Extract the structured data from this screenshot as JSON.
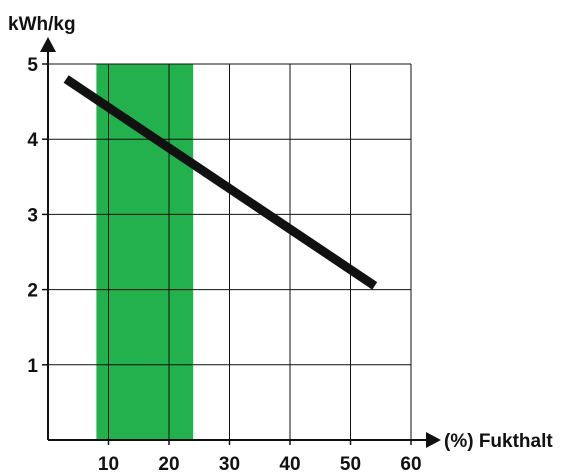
{
  "chart_data": {
    "type": "line",
    "xlabel": "(%) Fukthalt",
    "ylabel": "kWh/kg",
    "xlim": [
      0,
      60
    ],
    "ylim": [
      0,
      5
    ],
    "x_ticks": [
      10,
      20,
      30,
      40,
      50,
      60
    ],
    "y_ticks": [
      1,
      2,
      3,
      4,
      5
    ],
    "grid": true,
    "series": [
      {
        "x": [
          3,
          54
        ],
        "y": [
          4.8,
          2.05
        ],
        "color": "#111111"
      }
    ],
    "highlight_band": {
      "x_start": 8,
      "x_end": 24,
      "color": "#22b14c"
    }
  }
}
